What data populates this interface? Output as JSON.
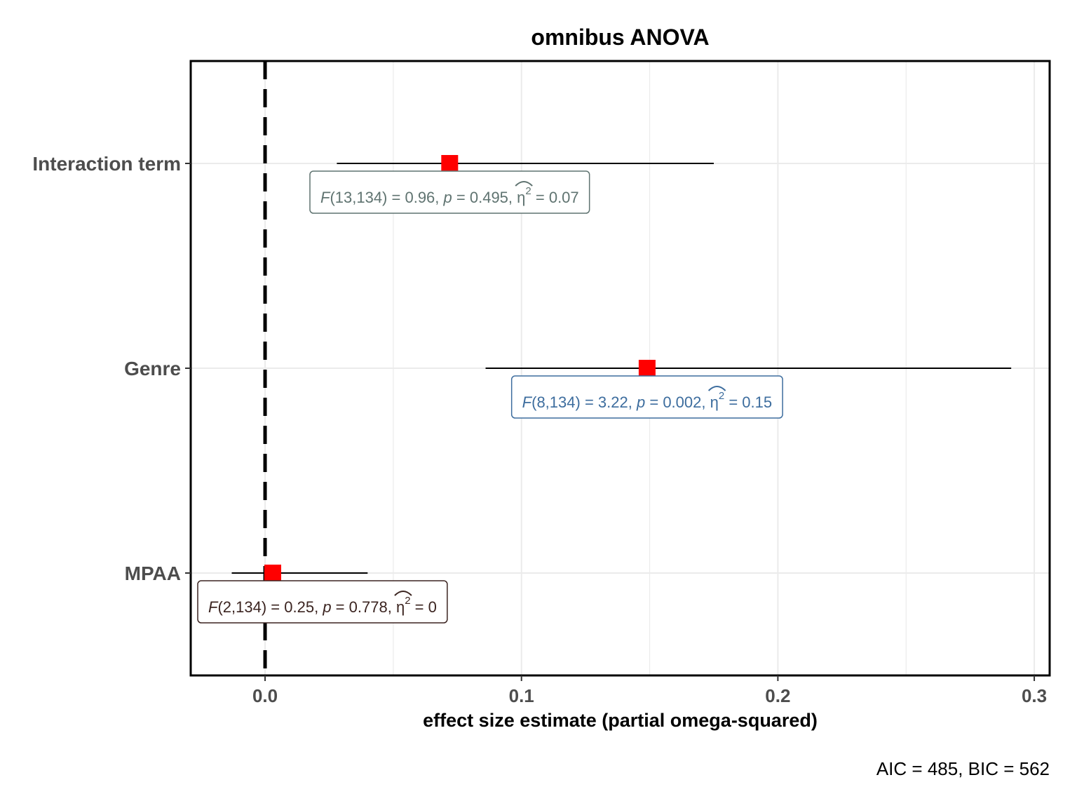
{
  "chart_data": {
    "type": "forest",
    "title": "omnibus ANOVA",
    "xlabel": "effect size estimate (partial omega-squared)",
    "ylabel": "",
    "caption": "AIC = 485, BIC = 562",
    "xlim": [
      -0.029,
      0.306
    ],
    "x_ticks": [
      0.0,
      0.1,
      0.2,
      0.3
    ],
    "x_tick_labels": [
      "0.0",
      "0.1",
      "0.2",
      "0.3"
    ],
    "reference_line": 0.0,
    "grid": true,
    "point_color": "#ff0000",
    "terms": [
      {
        "label": "Interaction term",
        "estimate": 0.072,
        "ci_low": 0.028,
        "ci_high": 0.175,
        "color": "#5f7370",
        "annotation": {
          "F_df": "13,134",
          "F": "0.96",
          "p": "0.495",
          "es": "0.07"
        }
      },
      {
        "label": "Genre",
        "estimate": 0.149,
        "ci_low": 0.086,
        "ci_high": 0.291,
        "color": "#3d6d9e",
        "annotation": {
          "F_df": "8,134",
          "F": "3.22",
          "p": "0.002",
          "es": "0.15"
        }
      },
      {
        "label": "MPAA",
        "estimate": 0.003,
        "ci_low": -0.013,
        "ci_high": 0.04,
        "color": "#3b2420",
        "annotation": {
          "F_df": "2,134",
          "F": "0.25",
          "p": "0.778",
          "es": "0"
        }
      }
    ]
  }
}
